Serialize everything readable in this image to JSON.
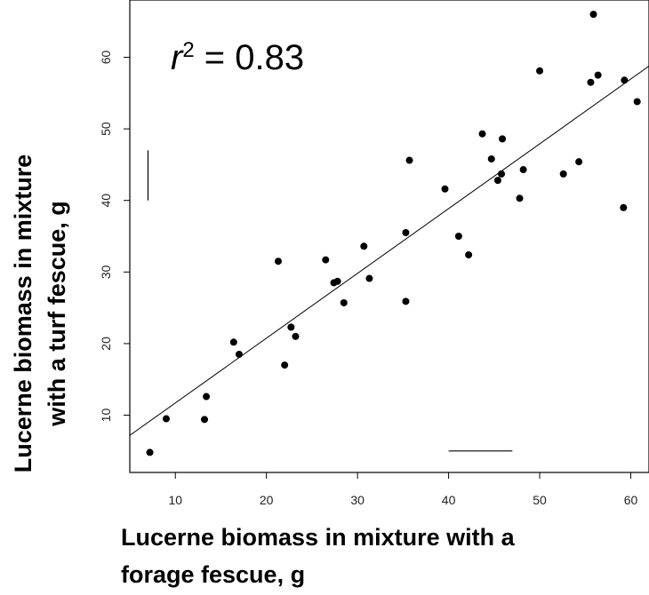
{
  "chart_data": {
    "type": "scatter",
    "title": "",
    "xlabel_lines": [
      "Lucerne biomass in mixture with a",
      "forage fescue, g"
    ],
    "ylabel_lines": [
      "Lucerne biomass in mixture",
      "with a turf fescue, g"
    ],
    "xlim": [
      5,
      62
    ],
    "ylim": [
      2,
      68
    ],
    "x_ticks": [
      10,
      20,
      30,
      40,
      50,
      60
    ],
    "y_ticks": [
      10,
      20,
      30,
      40,
      50,
      60
    ],
    "grid": false,
    "annotation": {
      "r_symbol": "r",
      "superscript": "2",
      "text": " = 0.83"
    },
    "regression_line": {
      "slope": 0.905,
      "intercept": 2.66
    },
    "error_bars": {
      "vertical": {
        "x": 7.0,
        "y_low": 40,
        "y_high": 47
      },
      "horizontal": {
        "y": 5.0,
        "x_low": 40,
        "x_high": 47
      }
    },
    "points": [
      {
        "x": 7.2,
        "y": 4.8
      },
      {
        "x": 9.0,
        "y": 9.5
      },
      {
        "x": 13.2,
        "y": 9.4
      },
      {
        "x": 13.4,
        "y": 12.6
      },
      {
        "x": 16.4,
        "y": 20.2
      },
      {
        "x": 17.0,
        "y": 18.5
      },
      {
        "x": 21.3,
        "y": 31.5
      },
      {
        "x": 22.0,
        "y": 17.0
      },
      {
        "x": 22.7,
        "y": 22.3
      },
      {
        "x": 23.2,
        "y": 21.0
      },
      {
        "x": 26.5,
        "y": 31.7
      },
      {
        "x": 27.4,
        "y": 28.5
      },
      {
        "x": 27.8,
        "y": 28.7
      },
      {
        "x": 28.5,
        "y": 25.7
      },
      {
        "x": 30.7,
        "y": 33.6
      },
      {
        "x": 31.3,
        "y": 29.1
      },
      {
        "x": 35.3,
        "y": 35.5
      },
      {
        "x": 35.3,
        "y": 25.9
      },
      {
        "x": 35.7,
        "y": 45.6
      },
      {
        "x": 39.6,
        "y": 41.6
      },
      {
        "x": 41.1,
        "y": 35.0
      },
      {
        "x": 42.2,
        "y": 32.4
      },
      {
        "x": 43.7,
        "y": 49.3
      },
      {
        "x": 44.7,
        "y": 45.8
      },
      {
        "x": 45.4,
        "y": 42.8
      },
      {
        "x": 45.8,
        "y": 43.7
      },
      {
        "x": 45.9,
        "y": 48.6
      },
      {
        "x": 47.8,
        "y": 40.3
      },
      {
        "x": 48.2,
        "y": 44.3
      },
      {
        "x": 50.0,
        "y": 58.1
      },
      {
        "x": 52.6,
        "y": 43.7
      },
      {
        "x": 54.3,
        "y": 45.4
      },
      {
        "x": 55.6,
        "y": 56.5
      },
      {
        "x": 55.9,
        "y": 66.0
      },
      {
        "x": 56.4,
        "y": 57.5
      },
      {
        "x": 59.2,
        "y": 39.0
      },
      {
        "x": 59.3,
        "y": 56.8
      },
      {
        "x": 60.7,
        "y": 53.8
      }
    ]
  }
}
